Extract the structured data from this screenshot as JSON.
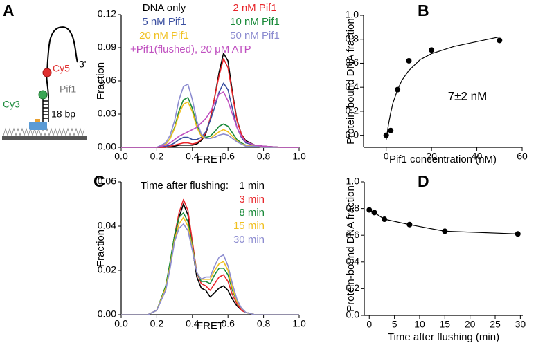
{
  "chart_data": [
    {
      "type": "line",
      "panel_label": "A",
      "xlabel": "FRET",
      "ylabel": "Fraction",
      "xlim": [
        0,
        1
      ],
      "xticks": [
        {
          "value": 0,
          "label": "0.0"
        },
        0.2,
        0.4,
        0.6,
        0.8,
        {
          "value": 1,
          "label": "1.0"
        }
      ],
      "ylim": [
        0,
        0.12
      ],
      "yticks": [
        {
          "value": 0,
          "label": "0.00"
        },
        0.03,
        0.06,
        0.09,
        0.12
      ],
      "x": [
        0,
        0.1,
        0.15,
        0.2,
        0.25,
        0.275,
        0.3,
        0.325,
        0.35,
        0.375,
        0.4,
        0.425,
        0.45,
        0.475,
        0.5,
        0.525,
        0.55,
        0.575,
        0.6,
        0.625,
        0.65,
        0.675,
        0.7,
        0.75,
        0.8,
        0.9,
        1.0
      ],
      "series": [
        {
          "name": "DNA only",
          "color": "#000000",
          "values": [
            0,
            0,
            0,
            0,
            0,
            0.001,
            0.001,
            0.002,
            0.002,
            0.002,
            0.002,
            0.003,
            0.006,
            0.012,
            0.025,
            0.045,
            0.068,
            0.085,
            0.078,
            0.05,
            0.025,
            0.012,
            0.006,
            0.002,
            0.001,
            0,
            0
          ]
        },
        {
          "name": "2 nM Pif1",
          "color": "#e8252a",
          "values": [
            0,
            0,
            0,
            0,
            0,
            0.001,
            0.002,
            0.003,
            0.004,
            0.004,
            0.003,
            0.004,
            0.007,
            0.013,
            0.026,
            0.045,
            0.065,
            0.08,
            0.072,
            0.048,
            0.024,
            0.012,
            0.005,
            0.002,
            0.001,
            0,
            0
          ]
        },
        {
          "name": "5 nM Pif1",
          "color": "#3a4fa0",
          "values": [
            0,
            0,
            0,
            0,
            0.001,
            0.002,
            0.004,
            0.007,
            0.009,
            0.009,
            0.007,
            0.007,
            0.009,
            0.014,
            0.024,
            0.036,
            0.05,
            0.058,
            0.052,
            0.035,
            0.018,
            0.009,
            0.004,
            0.002,
            0.001,
            0,
            0
          ]
        },
        {
          "name": "10 nM Pif1",
          "color": "#1a8a3a",
          "values": [
            0,
            0,
            0,
            0,
            0.003,
            0.008,
            0.018,
            0.033,
            0.043,
            0.045,
            0.035,
            0.02,
            0.011,
            0.009,
            0.01,
            0.014,
            0.019,
            0.021,
            0.019,
            0.013,
            0.007,
            0.004,
            0.002,
            0.001,
            0,
            0,
            0
          ]
        },
        {
          "name": "20 nM Pif1",
          "color": "#f0c020",
          "values": [
            0,
            0,
            0,
            0,
            0.003,
            0.008,
            0.017,
            0.03,
            0.039,
            0.041,
            0.032,
            0.018,
            0.01,
            0.008,
            0.008,
            0.011,
            0.014,
            0.016,
            0.014,
            0.01,
            0.006,
            0.003,
            0.002,
            0.001,
            0,
            0,
            0
          ]
        },
        {
          "name": "50 nM Pif1",
          "color": "#8c8cd0",
          "values": [
            0,
            0,
            0,
            0,
            0.004,
            0.011,
            0.024,
            0.043,
            0.055,
            0.057,
            0.043,
            0.024,
            0.012,
            0.008,
            0.008,
            0.009,
            0.011,
            0.012,
            0.011,
            0.008,
            0.005,
            0.003,
            0.001,
            0.001,
            0,
            0,
            0
          ]
        },
        {
          "name": "+Pif1(flushed), 20 μM ATP",
          "color": "#c050c0",
          "values": [
            0,
            0,
            0,
            0,
            0.002,
            0.004,
            0.007,
            0.01,
            0.012,
            0.014,
            0.016,
            0.018,
            0.022,
            0.026,
            0.032,
            0.04,
            0.048,
            0.05,
            0.042,
            0.03,
            0.018,
            0.01,
            0.005,
            0.002,
            0.001,
            0,
            0
          ]
        }
      ]
    },
    {
      "type": "scatter",
      "panel_label": "B",
      "xlabel": "Pif1 concentration (nM)",
      "ylabel": "Protein-bound DNA fraction",
      "annotation": "7±2 nM",
      "color": "#000000",
      "xlim": [
        -10,
        60
      ],
      "xticks": [
        0,
        20,
        40,
        60
      ],
      "ylim": [
        -0.1,
        1.0
      ],
      "yticks": [
        {
          "value": 0,
          "label": "0.0"
        },
        0.2,
        0.4,
        0.6,
        0.8,
        {
          "value": 1,
          "label": "1.0"
        }
      ],
      "x": [
        0,
        2,
        5,
        10,
        20,
        50
      ],
      "values": [
        0,
        0.04,
        0.38,
        0.62,
        0.71,
        0.79
      ],
      "fit": {
        "x": [
          0,
          1,
          2,
          3,
          5,
          7,
          10,
          15,
          20,
          30,
          40,
          50
        ],
        "values": [
          -0.04,
          0.09,
          0.19,
          0.27,
          0.38,
          0.46,
          0.54,
          0.63,
          0.68,
          0.74,
          0.78,
          0.82
        ]
      }
    },
    {
      "type": "line",
      "panel_label": "C",
      "xlabel": "FRET",
      "ylabel": "Fraction",
      "legend_title": "Time after flushing:",
      "xlim": [
        0,
        1
      ],
      "xticks": [
        {
          "value": 0,
          "label": "0.0"
        },
        0.2,
        0.4,
        0.6,
        0.8,
        {
          "value": 1,
          "label": "1.0"
        }
      ],
      "ylim": [
        0,
        0.06
      ],
      "yticks": [
        {
          "value": 0,
          "label": "0.00"
        },
        0.02,
        0.04,
        0.06
      ],
      "x": [
        0,
        0.1,
        0.15,
        0.2,
        0.25,
        0.275,
        0.3,
        0.325,
        0.35,
        0.375,
        0.4,
        0.425,
        0.45,
        0.475,
        0.5,
        0.525,
        0.55,
        0.575,
        0.6,
        0.625,
        0.65,
        0.675,
        0.7,
        0.75,
        0.8,
        0.9,
        1.0
      ],
      "series": [
        {
          "name": "1 min",
          "color": "#000000",
          "values": [
            0,
            0,
            0,
            0.002,
            0.012,
            0.022,
            0.035,
            0.044,
            0.05,
            0.045,
            0.03,
            0.017,
            0.012,
            0.011,
            0.008,
            0.01,
            0.012,
            0.013,
            0.011,
            0.007,
            0.004,
            0.002,
            0.001,
            0,
            0,
            0,
            0
          ]
        },
        {
          "name": "3 min",
          "color": "#e8252a",
          "values": [
            0,
            0,
            0,
            0.002,
            0.012,
            0.023,
            0.036,
            0.046,
            0.052,
            0.047,
            0.033,
            0.019,
            0.014,
            0.013,
            0.011,
            0.014,
            0.017,
            0.018,
            0.015,
            0.009,
            0.005,
            0.002,
            0.001,
            0,
            0,
            0,
            0
          ]
        },
        {
          "name": "8 min",
          "color": "#1a8a3a",
          "values": [
            0,
            0,
            0,
            0.002,
            0.013,
            0.024,
            0.036,
            0.044,
            0.046,
            0.042,
            0.031,
            0.019,
            0.015,
            0.015,
            0.014,
            0.018,
            0.021,
            0.021,
            0.018,
            0.011,
            0.006,
            0.003,
            0.001,
            0,
            0,
            0,
            0
          ]
        },
        {
          "name": "15 min",
          "color": "#f0c020",
          "values": [
            0,
            0,
            0,
            0.002,
            0.012,
            0.022,
            0.034,
            0.041,
            0.044,
            0.04,
            0.03,
            0.019,
            0.016,
            0.016,
            0.016,
            0.02,
            0.023,
            0.024,
            0.02,
            0.012,
            0.006,
            0.003,
            0.001,
            0,
            0,
            0,
            0
          ]
        },
        {
          "name": "30 min",
          "color": "#8c8cd0",
          "values": [
            0,
            0,
            0,
            0.002,
            0.011,
            0.021,
            0.033,
            0.039,
            0.041,
            0.038,
            0.029,
            0.019,
            0.016,
            0.017,
            0.017,
            0.022,
            0.026,
            0.027,
            0.022,
            0.014,
            0.007,
            0.003,
            0.001,
            0,
            0,
            0,
            0
          ]
        }
      ]
    },
    {
      "type": "scatter",
      "panel_label": "D",
      "xlabel": "Time after flushing (min)",
      "ylabel": "Protein-bound DNA fraction",
      "color": "#000000",
      "connect": true,
      "xlim": [
        -1,
        30.5
      ],
      "xticks": [
        0,
        5,
        10,
        15,
        20,
        25,
        30
      ],
      "ylim": [
        0,
        1.0
      ],
      "yticks": [
        {
          "value": 0,
          "label": "0.0"
        },
        0.2,
        0.4,
        0.6,
        0.8,
        {
          "value": 1,
          "label": "1.0"
        }
      ],
      "x": [
        0,
        1,
        3,
        8,
        15,
        29.5
      ],
      "values": [
        0.79,
        0.77,
        0.72,
        0.68,
        0.63,
        0.61
      ]
    }
  ],
  "diagram": {
    "end_label": "3'",
    "acceptor": "Cy5",
    "protein": "Pif1",
    "donor": "Cy3",
    "duplex": "18 bp"
  }
}
